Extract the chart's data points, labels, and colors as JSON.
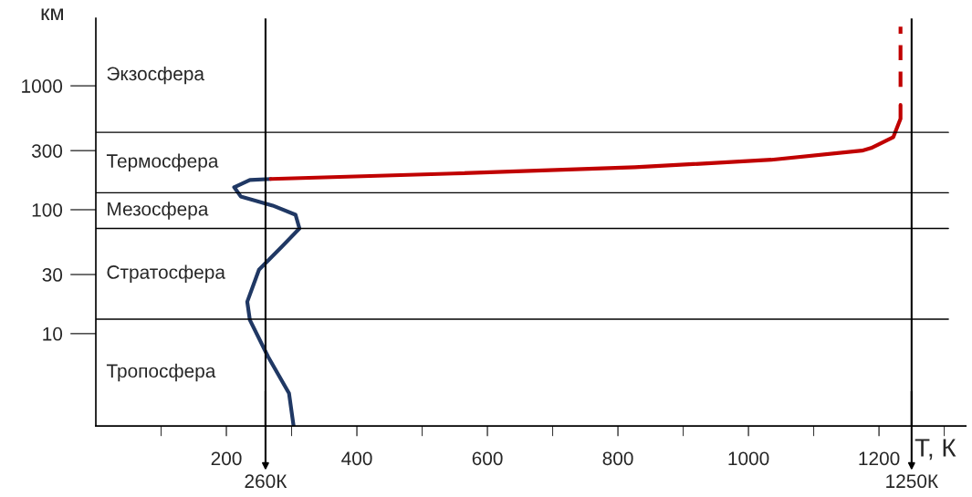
{
  "chart_data": {
    "type": "line",
    "xlabel": "T, К",
    "ylabel": "км",
    "log": "y",
    "xlim": [
      0,
      1333
    ],
    "ylim": [
      1.8,
      3500
    ],
    "xticks": [
      {
        "value": 100,
        "label": null
      },
      200,
      {
        "value": 300,
        "label": null
      },
      400,
      {
        "value": 500,
        "label": null
      },
      600,
      {
        "value": 700,
        "label": null
      },
      800,
      {
        "value": 900,
        "label": null
      },
      1000,
      {
        "value": 1100,
        "label": null
      },
      1200,
      {
        "value": 1300,
        "label": null
      }
    ],
    "yticks": [
      10,
      30,
      100,
      300,
      1000
    ],
    "series": [
      {
        "color": "#203864",
        "x": [
          303,
          296,
          264,
          236,
          232,
          250,
          285,
          312,
          306,
          271,
          222,
          212,
          236,
          268
        ],
        "values": [
          1.8,
          3.3,
          6.5,
          12.9,
          18.1,
          32.8,
          50.3,
          70.6,
          91,
          108,
          128,
          152,
          174,
          177
        ]
      },
      {
        "color": "#c00000",
        "x": [
          268,
          549,
          826,
          1035,
          1174,
          1188,
          1222,
          1233,
          1233
        ],
        "values": [
          177,
          196,
          220,
          253,
          300,
          315,
          386,
          543,
          700
        ]
      },
      {
        "color": "#c00000",
        "line_style": "dashed",
        "x": [
          1233,
          1233
        ],
        "values": [
          980,
          3000
        ]
      }
    ],
    "ref_lines": [
      {
        "axis": "y",
        "value": 421
      },
      {
        "axis": "y",
        "value": 137
      },
      {
        "axis": "y",
        "value": 70.6
      },
      {
        "axis": "y",
        "value": 13.1
      },
      {
        "axis": "x",
        "value": 260,
        "label": "260К"
      },
      {
        "axis": "x",
        "value": 1250,
        "label": "1250К"
      }
    ],
    "annotations": [
      "Экзосфера",
      "Термосфера",
      "Мезосфера",
      "Стратосфера",
      "Тропосфера"
    ]
  }
}
